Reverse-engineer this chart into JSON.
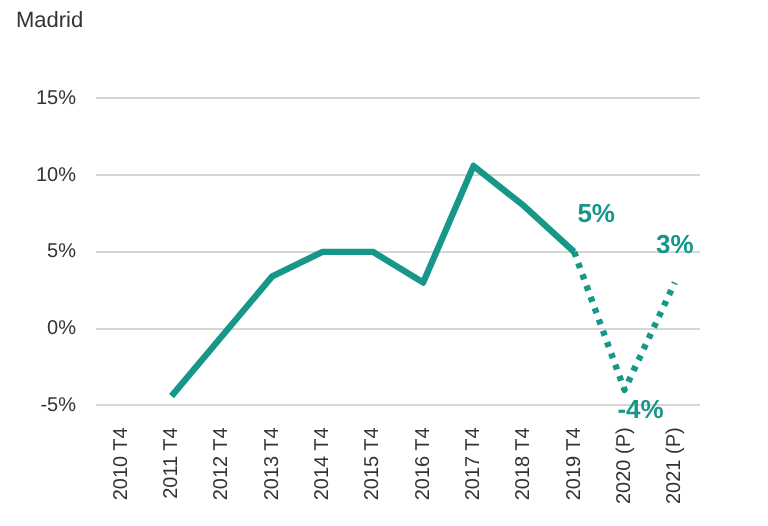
{
  "chart_data": {
    "type": "line",
    "title": "Madrid",
    "categories": [
      "2010 T4",
      "2011 T4",
      "2012 T4",
      "2013 T4",
      "2014 T4",
      "2015 T4",
      "2016 T4",
      "2017 T4",
      "2018 T4",
      "2019 T4",
      "2020 (P)",
      "2021 (P)"
    ],
    "series": [
      {
        "color": "#16978a",
        "line_style": "solid",
        "values": [
          null,
          -4.4,
          -0.5,
          3.4,
          5,
          5,
          3,
          10.6,
          8,
          5,
          null,
          null
        ],
        "value_labels": [
          null,
          null,
          null,
          null,
          null,
          null,
          null,
          null,
          null,
          "5%",
          null,
          null
        ]
      },
      {
        "color": "#16978a",
        "line_style": "dotted",
        "values": [
          null,
          null,
          null,
          null,
          null,
          null,
          null,
          null,
          null,
          5,
          -4,
          3
        ],
        "value_labels": [
          null,
          null,
          null,
          null,
          null,
          null,
          null,
          null,
          null,
          null,
          "-4%",
          "3%"
        ]
      }
    ],
    "ylim": [
      -5,
      15
    ],
    "yticks": [
      {
        "value": -5,
        "label": "-5%"
      },
      {
        "value": 0,
        "label": "0%"
      },
      {
        "value": 5,
        "label": "5%"
      },
      {
        "value": 10,
        "label": "10%"
      },
      {
        "value": 15,
        "label": "15%"
      }
    ],
    "grid": "y",
    "legend": false,
    "marker": "none"
  }
}
